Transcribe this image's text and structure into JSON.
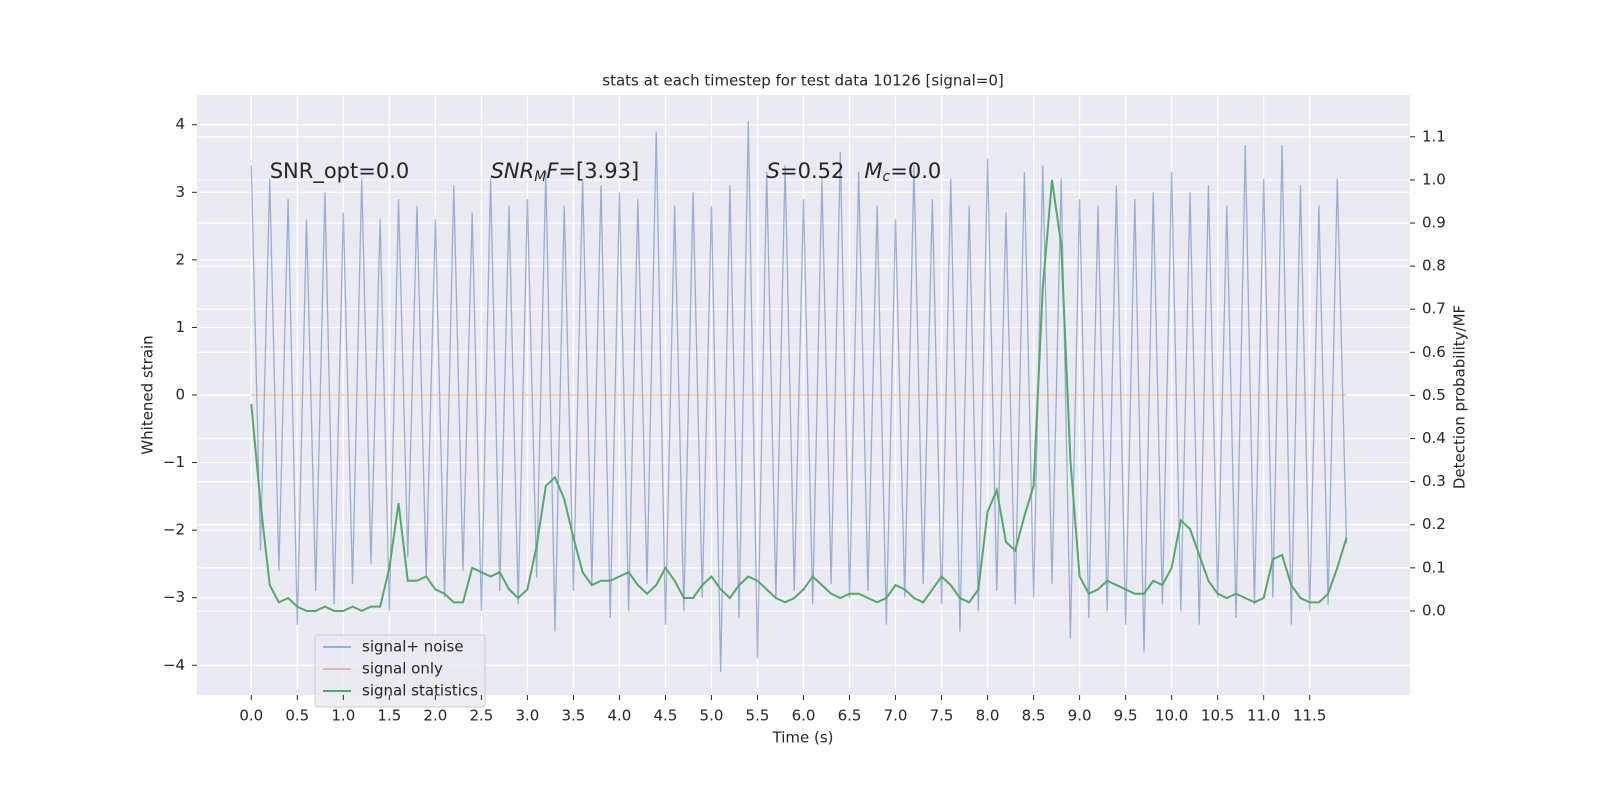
{
  "chart_data": {
    "type": "line",
    "title": "stats at each timestep for test data 10126 [signal=0]",
    "x_label": "Time (s)",
    "y_label": "Whitened strain",
    "y2_label": "Detection probability/MF",
    "annotations": [
      [
        {
          "text": "SNR_opt=0.0",
          "style": "normal"
        }
      ],
      [
        {
          "text": "SNR",
          "style": "italic"
        },
        {
          "text": "M",
          "style": "italic-sub"
        },
        {
          "text": "F",
          "style": "italic"
        },
        {
          "text": "=[3.93]",
          "style": "normal"
        }
      ],
      [
        {
          "text": "S",
          "style": "italic"
        },
        {
          "text": "=0.52   ",
          "style": "normal"
        },
        {
          "text": "M",
          "style": "italic"
        },
        {
          "text": "c",
          "style": "italic-sub"
        },
        {
          "text": "=0.0",
          "style": "normal"
        }
      ]
    ],
    "annotation_x": [
      0.2,
      2.6,
      5.6
    ],
    "annotation_y": [
      3.3,
      3.3,
      3.3
    ],
    "background": "#eaeaf2",
    "grid": true,
    "legend": "lower left",
    "x": [
      0,
      0.1,
      0.2,
      0.3,
      0.4,
      0.5,
      0.6,
      0.7,
      0.8,
      0.9,
      1,
      1.1,
      1.2,
      1.3,
      1.4,
      1.5,
      1.6,
      1.7,
      1.8,
      1.9,
      2,
      2.1,
      2.2,
      2.3,
      2.4,
      2.5,
      2.6,
      2.7,
      2.8,
      2.9,
      3,
      3.1,
      3.2,
      3.3,
      3.4,
      3.5,
      3.6,
      3.7,
      3.8,
      3.9,
      4,
      4.1,
      4.2,
      4.3,
      4.4,
      4.5,
      4.6,
      4.7,
      4.8,
      4.9,
      5,
      5.1,
      5.2,
      5.3,
      5.4,
      5.5,
      5.6,
      5.7,
      5.8,
      5.9,
      6,
      6.1,
      6.2,
      6.3,
      6.4,
      6.5,
      6.6,
      6.7,
      6.8,
      6.9,
      7,
      7.1,
      7.2,
      7.3,
      7.4,
      7.5,
      7.6,
      7.7,
      7.8,
      7.9,
      8,
      8.1,
      8.2,
      8.3,
      8.4,
      8.5,
      8.6,
      8.7,
      8.8,
      8.9,
      9,
      9.1,
      9.2,
      9.3,
      9.4,
      9.5,
      9.6,
      9.7,
      9.8,
      9.9,
      10,
      10.1,
      10.2,
      10.3,
      10.4,
      10.5,
      10.6,
      10.7,
      10.8,
      10.9,
      11,
      11.1,
      11.2,
      11.3,
      11.4,
      11.5,
      11.6,
      11.7,
      11.8,
      11.9
    ],
    "series": [
      {
        "name": "signal+ noise",
        "color": "#4c72b0",
        "opacity": 0.5,
        "values": [
          3.4,
          -2.3,
          3.2,
          -2.6,
          2.9,
          -3.4,
          2.6,
          -2.9,
          3.0,
          -3.1,
          2.7,
          -2.8,
          3.2,
          -2.5,
          2.6,
          -3.2,
          2.9,
          -2.4,
          2.8,
          -2.7,
          2.6,
          -3.0,
          3.1,
          -2.6,
          2.7,
          -3.2,
          3.2,
          -2.9,
          2.8,
          -3.1,
          2.9,
          -2.7,
          3.3,
          -3.5,
          2.8,
          -2.9,
          3.2,
          -2.8,
          3.1,
          -3.3,
          3.0,
          -3.2,
          2.9,
          -2.8,
          3.9,
          -3.4,
          2.8,
          -3.2,
          3.0,
          -3.0,
          2.8,
          -4.1,
          3.1,
          -3.3,
          4.05,
          -3.9,
          3.3,
          -3.0,
          3.4,
          -2.9,
          2.9,
          -3.1,
          3.2,
          -2.8,
          3.6,
          -3.0,
          3.3,
          -2.9,
          2.8,
          -3.4,
          2.6,
          -3.0,
          3.4,
          -2.8,
          2.9,
          -3.1,
          3.2,
          -3.5,
          2.8,
          -3.2,
          3.5,
          -2.9,
          2.7,
          -3.1,
          3.3,
          -3.0,
          3.4,
          -2.8,
          3.2,
          -3.6,
          2.9,
          -3.3,
          2.8,
          -3.2,
          3.1,
          -3.4,
          2.9,
          -3.8,
          3.0,
          -3.1,
          3.3,
          -3.2,
          3.0,
          -3.4,
          3.1,
          -3.0,
          2.8,
          -3.3,
          3.7,
          -3.1,
          3.2,
          -3.0,
          3.7,
          -3.4,
          3.1,
          -3.2,
          2.8,
          -3.1,
          3.2,
          -2.2
        ]
      },
      {
        "name": "signal only",
        "color": "#dd8452",
        "opacity": 0.5,
        "values": [
          0,
          0,
          0,
          0,
          0,
          0,
          0,
          0,
          0,
          0,
          0,
          0,
          0,
          0,
          0,
          0,
          0,
          0,
          0,
          0,
          0,
          0,
          0,
          0,
          0,
          0,
          0,
          0,
          0,
          0,
          0,
          0,
          0,
          0,
          0,
          0,
          0,
          0,
          0,
          0,
          0,
          0,
          0,
          0,
          0,
          0,
          0,
          0,
          0,
          0,
          0,
          0,
          0,
          0,
          0,
          0,
          0,
          0,
          0,
          0,
          0,
          0,
          0,
          0,
          0,
          0,
          0,
          0,
          0,
          0,
          0,
          0,
          0,
          0,
          0,
          0,
          0,
          0,
          0,
          0,
          0,
          0,
          0,
          0,
          0,
          0,
          0,
          0,
          0,
          0,
          0,
          0,
          0,
          0,
          0,
          0,
          0,
          0,
          0,
          0,
          0,
          0,
          0,
          0,
          0,
          0,
          0,
          0,
          0,
          0,
          0,
          0,
          0,
          0,
          0,
          0,
          0,
          0,
          0,
          0
        ]
      },
      {
        "name": "signal statistics",
        "color": "#55a868",
        "opacity": 1,
        "axis": "y2",
        "values": [
          0.48,
          0.25,
          0.06,
          0.02,
          0.03,
          0.01,
          0.0,
          0.0,
          0.01,
          0.0,
          0.0,
          0.01,
          0.0,
          0.01,
          0.01,
          0.1,
          0.25,
          0.07,
          0.07,
          0.08,
          0.05,
          0.04,
          0.02,
          0.02,
          0.1,
          0.09,
          0.08,
          0.09,
          0.05,
          0.03,
          0.05,
          0.15,
          0.29,
          0.31,
          0.26,
          0.17,
          0.09,
          0.06,
          0.07,
          0.07,
          0.08,
          0.09,
          0.06,
          0.04,
          0.06,
          0.1,
          0.07,
          0.03,
          0.03,
          0.06,
          0.08,
          0.05,
          0.03,
          0.06,
          0.08,
          0.07,
          0.05,
          0.03,
          0.02,
          0.03,
          0.05,
          0.08,
          0.06,
          0.04,
          0.03,
          0.04,
          0.04,
          0.03,
          0.02,
          0.03,
          0.06,
          0.05,
          0.03,
          0.02,
          0.05,
          0.08,
          0.06,
          0.03,
          0.02,
          0.05,
          0.23,
          0.28,
          0.16,
          0.14,
          0.22,
          0.29,
          0.75,
          1.0,
          0.85,
          0.35,
          0.08,
          0.04,
          0.05,
          0.07,
          0.06,
          0.05,
          0.04,
          0.04,
          0.07,
          0.06,
          0.1,
          0.21,
          0.19,
          0.13,
          0.07,
          0.04,
          0.03,
          0.04,
          0.03,
          0.02,
          0.03,
          0.12,
          0.13,
          0.06,
          0.03,
          0.02,
          0.02,
          0.04,
          0.1,
          0.17
        ]
      }
    ],
    "xlim": [
      -0.59,
      12.59
    ],
    "ylim": [
      -4.44,
      4.44
    ],
    "y2lim": [
      -0.195,
      1.197
    ],
    "xticks": [
      {
        "value": 0,
        "label": "0.0"
      },
      {
        "value": 0.5,
        "label": "0.5"
      },
      {
        "value": 1,
        "label": "1.0"
      },
      {
        "value": 1.5,
        "label": "1.5"
      },
      {
        "value": 2,
        "label": "2.0"
      },
      {
        "value": 2.5,
        "label": "2.5"
      },
      {
        "value": 3,
        "label": "3.0"
      },
      {
        "value": 3.5,
        "label": "3.5"
      },
      {
        "value": 4,
        "label": "4.0"
      },
      {
        "value": 4.5,
        "label": "4.5"
      },
      {
        "value": 5,
        "label": "5.0"
      },
      {
        "value": 5.5,
        "label": "5.5"
      },
      {
        "value": 6,
        "label": "6.0"
      },
      {
        "value": 6.5,
        "label": "6.5"
      },
      {
        "value": 7,
        "label": "7.0"
      },
      {
        "value": 7.5,
        "label": "7.5"
      },
      {
        "value": 8,
        "label": "8.0"
      },
      {
        "value": 8.5,
        "label": "8.5"
      },
      {
        "value": 9,
        "label": "9.0"
      },
      {
        "value": 9.5,
        "label": "9.5"
      },
      {
        "value": 10,
        "label": "10.0"
      },
      {
        "value": 10.5,
        "label": "10.5"
      },
      {
        "value": 11,
        "label": "11.0"
      },
      {
        "value": 11.5,
        "label": "11.5"
      }
    ],
    "yticks": [
      {
        "value": -4,
        "label": "−4"
      },
      {
        "value": -3,
        "label": "−3"
      },
      {
        "value": -2,
        "label": "−2"
      },
      {
        "value": -1,
        "label": "−1"
      },
      0,
      1,
      2,
      3,
      4
    ],
    "y2ticks": [
      {
        "value": 0,
        "label": "0.0"
      },
      {
        "value": 0.1,
        "label": "0.1"
      },
      {
        "value": 0.2,
        "label": "0.2"
      },
      {
        "value": 0.3,
        "label": "0.3"
      },
      {
        "value": 0.4,
        "label": "0.4"
      },
      {
        "value": 0.5,
        "label": "0.5"
      },
      {
        "value": 0.6,
        "label": "0.6"
      },
      {
        "value": 0.7,
        "label": "0.7"
      },
      {
        "value": 0.8,
        "label": "0.8"
      },
      {
        "value": 0.9,
        "label": "0.9"
      },
      {
        "value": 1,
        "label": "1.0"
      },
      {
        "value": 1.1,
        "label": "1.1"
      }
    ]
  }
}
